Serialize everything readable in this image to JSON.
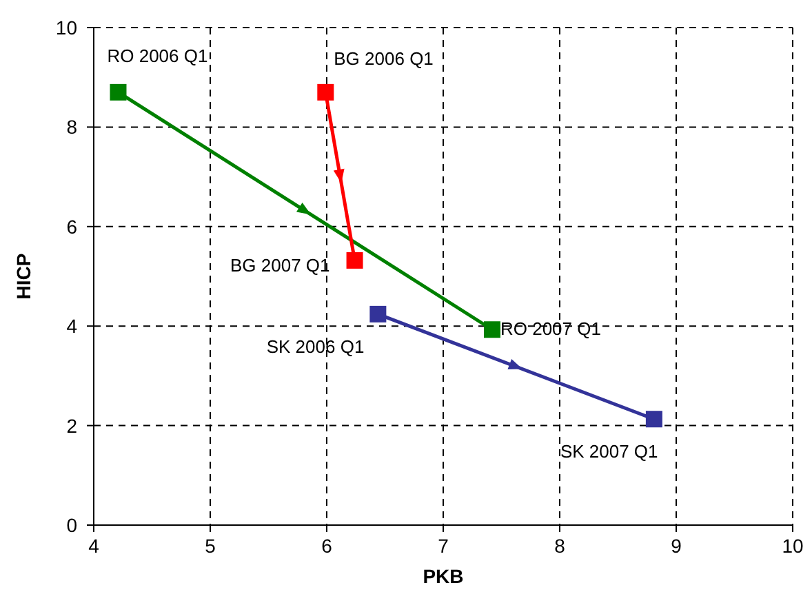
{
  "chart_data": {
    "type": "line",
    "xlabel": "PKB",
    "ylabel": "HICP",
    "xlim": [
      4,
      10
    ],
    "xticks": [
      4,
      5,
      6,
      7,
      8,
      9,
      10
    ],
    "ylim": [
      0,
      10
    ],
    "yticks": [
      0,
      2,
      4,
      6,
      8,
      10
    ],
    "grid": true,
    "marker": "square",
    "line_style": "solid",
    "series": [
      {
        "color": "#008000",
        "x": [
          4.21,
          7.42
        ],
        "values": [
          8.7,
          3.93
        ]
      },
      {
        "color": "#ff0000",
        "x": [
          5.99,
          6.24
        ],
        "values": [
          8.7,
          5.32
        ]
      },
      {
        "color": "#333399",
        "x": [
          6.44,
          8.81
        ],
        "values": [
          4.24,
          2.13
        ]
      }
    ],
    "annotations": [
      {
        "text": "RO 2006 Q1",
        "x": 4.21,
        "y": 8.7
      },
      {
        "text": "BG 2006 Q1",
        "x": 5.99,
        "y": 8.7
      },
      {
        "text": "BG 2007 Q1",
        "x": 6.24,
        "y": 5.32
      },
      {
        "text": "RO 2007 Q1",
        "x": 7.42,
        "y": 3.93
      },
      {
        "text": "SK 2006 Q1",
        "x": 6.44,
        "y": 4.24
      },
      {
        "text": "SK 2007 Q1",
        "x": 8.81,
        "y": 2.13
      }
    ]
  }
}
